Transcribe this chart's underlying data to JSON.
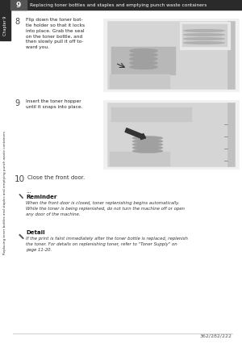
{
  "bg_color": "#ffffff",
  "header_bg": "#2a2a2a",
  "header_num": "9",
  "header_title": "Replacing toner bottles and staples and emptying punch waste containers",
  "chapter_label": "Chapter 9",
  "sidebar_text": "Replacing toner bottles and staples and emptying punch waste containers",
  "step8_num": "8",
  "step8_text": "Flip down the toner bot-\ntle holder so that it locks\ninto place. Grab the seal\non the toner bottle, and\nthen slowly pull it off to-\nward you.",
  "step9_num": "9",
  "step9_text": "Insert the toner hopper\nuntil it snaps into place.",
  "step10_num": "10",
  "step10_text": "Close the front door.",
  "reminder_dots": "...",
  "reminder_title": "Reminder",
  "reminder_text": "When the front door is closed, toner replenishing begins automatically.\nWhile the toner is being replenished, do not turn the machine off or open\nany door of the machine.",
  "detail_title": "Detail",
  "detail_text": "If the print is faint immediately after the toner bottle is replaced, replenish\nthe toner. For details on replenishing toner, refer to \"Toner Supply\" on\npage 11-20.",
  "footer_text": "362/282/222"
}
